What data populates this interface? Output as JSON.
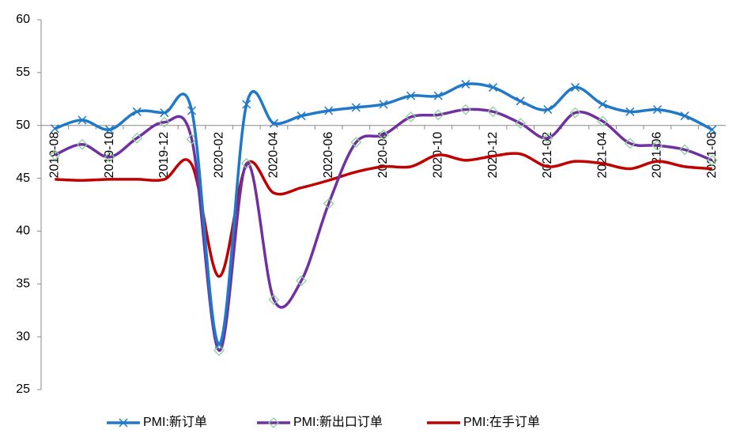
{
  "chart_data": {
    "type": "line",
    "smooth": true,
    "categories": [
      "2019-08",
      null,
      "2019-10",
      null,
      "2019-12",
      null,
      "2020-02",
      null,
      "2020-04",
      null,
      "2020-06",
      null,
      "2020-08",
      null,
      "2020-10",
      null,
      "2020-12",
      null,
      "2021-02",
      null,
      "2021-04",
      null,
      "2021-06",
      null,
      "2021-08"
    ],
    "series": [
      {
        "name": "PMI:新订单",
        "color": "#1f78c8",
        "marker": "x",
        "values": [
          49.7,
          50.5,
          49.6,
          51.3,
          51.2,
          51.4,
          29.3,
          52.0,
          50.2,
          50.9,
          51.4,
          51.7,
          52.0,
          52.8,
          52.8,
          53.9,
          53.6,
          52.3,
          51.5,
          53.6,
          52.0,
          51.3,
          51.5,
          50.9,
          49.6
        ]
      },
      {
        "name": "PMI:新出口订单",
        "color": "#7030a0",
        "marker": "diamond",
        "marker_color": "#8ccf9c",
        "values": [
          47.2,
          48.2,
          47.0,
          48.8,
          50.3,
          48.7,
          28.7,
          46.4,
          33.5,
          35.3,
          42.6,
          48.4,
          49.1,
          50.8,
          51.0,
          51.5,
          51.3,
          50.2,
          48.8,
          51.2,
          50.4,
          48.3,
          48.1,
          47.7,
          46.7
        ]
      },
      {
        "name": "PMI:在手订单",
        "color": "#c00000",
        "marker": "none",
        "values": [
          44.9,
          44.8,
          44.9,
          44.9,
          44.9,
          46.3,
          35.7,
          46.3,
          43.6,
          44.1,
          44.8,
          45.6,
          46.1,
          46.1,
          47.2,
          46.7,
          47.1,
          47.3,
          46.1,
          46.6,
          46.4,
          45.9,
          46.6,
          46.1,
          45.9
        ]
      }
    ],
    "ylim": [
      25,
      60
    ],
    "yticks": [
      25,
      30,
      35,
      40,
      45,
      50,
      55,
      60
    ],
    "x_axis_crosses": 50,
    "legend": "bottom"
  }
}
